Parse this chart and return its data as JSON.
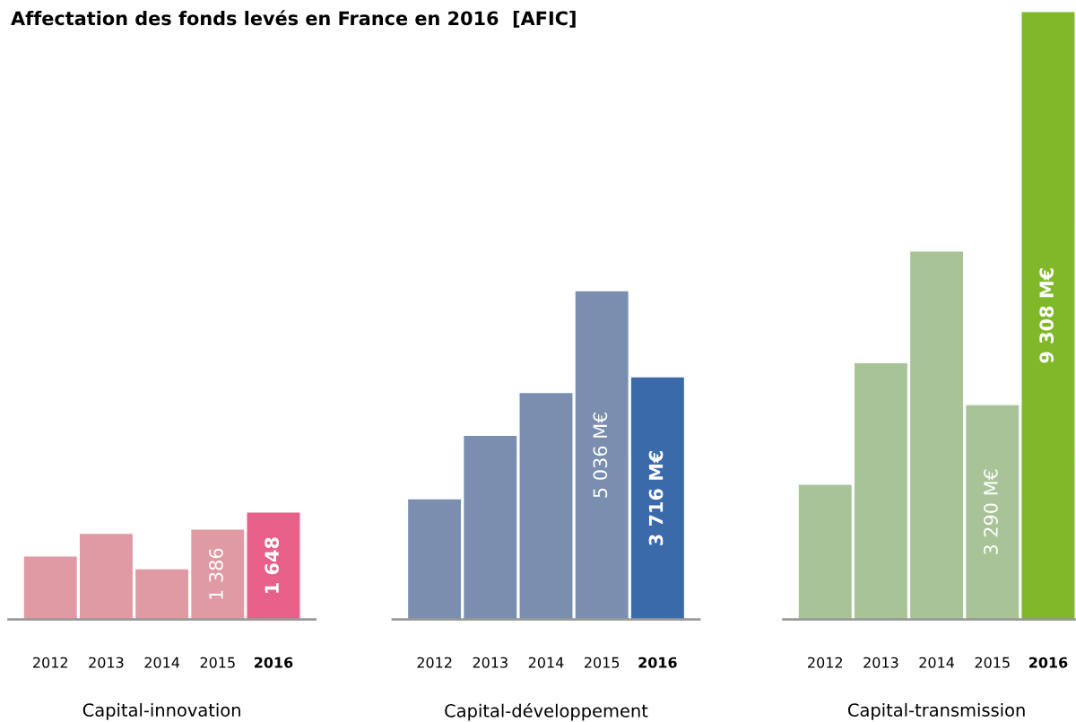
{
  "chart_data": [
    {
      "type": "bar",
      "title": "Affectation des fonds levés en France en 2016  [AFIC]",
      "xlabel": "Capital-innovation",
      "categories": [
        "2012",
        "2013",
        "2014",
        "2015",
        "2016"
      ],
      "values": [
        973,
        1320,
        778,
        1386,
        1648
      ],
      "colors": [
        "#e09aa4",
        "#e09aa4",
        "#e09aa4",
        "#e09aa4",
        "#e8608a"
      ],
      "value_labels": [
        null,
        null,
        null,
        "1 386",
        "1 648"
      ],
      "tick_labels": "x"
    },
    {
      "type": "bar",
      "xlabel": "Capital-développement",
      "categories": [
        "2012",
        "2013",
        "2014",
        "2015",
        "2016"
      ],
      "values": [
        1849,
        2822,
        3475,
        5036,
        3716
      ],
      "colors": [
        "#7a8fb0",
        "#7a8fb0",
        "#7a8fb0",
        "#7a8fb0",
        "#3a6aaa"
      ],
      "value_labels": [
        null,
        null,
        null,
        "5 036 M€",
        "3 716 M€"
      ],
      "tick_labels": "x"
    },
    {
      "type": "bar",
      "xlabel": "Capital-transmission",
      "categories": [
        "2012",
        "2013",
        "2014",
        "2015",
        "2016"
      ],
      "values": [
        2071,
        3934,
        5643,
        3290,
        9308
      ],
      "colors": [
        "#a8c496",
        "#a8c496",
        "#a8c496",
        "#a8c496",
        "#80b828"
      ],
      "value_labels": [
        null,
        null,
        null,
        "3 290 M€",
        "9 308 M€"
      ],
      "tick_labels": "x"
    }
  ]
}
